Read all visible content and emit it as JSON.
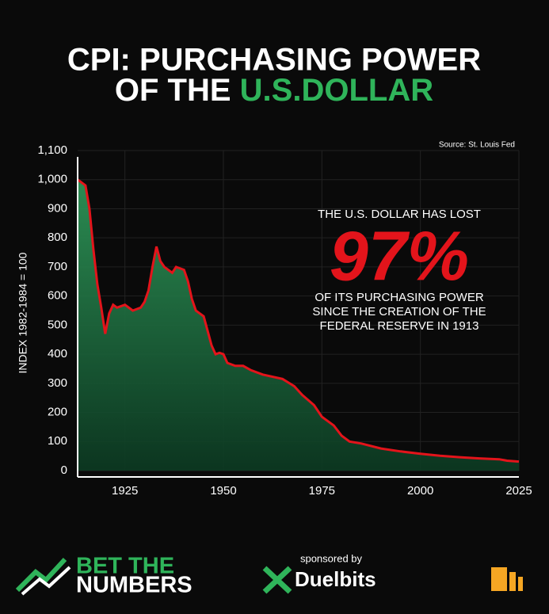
{
  "chart_data": {
    "type": "area",
    "title": "CPI: PURCHASING POWER",
    "title_line2": "OF THE",
    "title_highlight": "U.S.DOLLAR",
    "source": "Source: St. Louis Fed",
    "y_label": "INDEX 1982-1984 = 100",
    "annotation": {
      "line1": "THE U.S. DOLLAR HAS LOST",
      "big": "97%",
      "line2": "OF ITS PURCHASING POWER",
      "line3": "SINCE THE CREATION OF THE",
      "line4": "FEDERAL RESERVE IN 1913"
    },
    "x": [
      1913,
      1915,
      1916,
      1917,
      1918,
      1919,
      1920,
      1921,
      1922,
      1923,
      1925,
      1927,
      1929,
      1930,
      1931,
      1932,
      1933,
      1934,
      1935,
      1937,
      1938,
      1940,
      1941,
      1942,
      1943,
      1944,
      1945,
      1946,
      1947,
      1948,
      1949,
      1950,
      1951,
      1953,
      1955,
      1957,
      1960,
      1965,
      1968,
      1970,
      1973,
      1975,
      1978,
      1980,
      1982,
      1985,
      1990,
      1995,
      2000,
      2005,
      2010,
      2015,
      2020,
      2022,
      2025
    ],
    "series": [
      {
        "color": "#e3141b",
        "fill": "#1f7a45",
        "values": [
          1000,
          980,
          900,
          760,
          640,
          560,
          470,
          540,
          570,
          560,
          570,
          550,
          560,
          580,
          620,
          700,
          770,
          720,
          700,
          680,
          700,
          690,
          650,
          590,
          550,
          540,
          530,
          480,
          430,
          400,
          405,
          400,
          370,
          360,
          360,
          345,
          330,
          315,
          290,
          260,
          225,
          185,
          155,
          120,
          100,
          93,
          76,
          66,
          58,
          51,
          46,
          42,
          39,
          34,
          31
        ]
      }
    ],
    "xlim": [
      1913,
      2025
    ],
    "xticks": [
      1925,
      1950,
      1975,
      2000,
      2025
    ],
    "ylim": [
      0,
      1100
    ],
    "yticks": [
      0,
      100,
      200,
      300,
      400,
      500,
      600,
      700,
      800,
      900,
      {
        "value": 1000,
        "label": "1,000"
      },
      {
        "value": 1100,
        "label": "1,100"
      }
    ],
    "grid": true
  },
  "footer": {
    "brand_line1": "BET THE",
    "brand_line2": "NUMBERS",
    "sponsor_label": "sponsored by",
    "sponsor": "Duelbits"
  }
}
